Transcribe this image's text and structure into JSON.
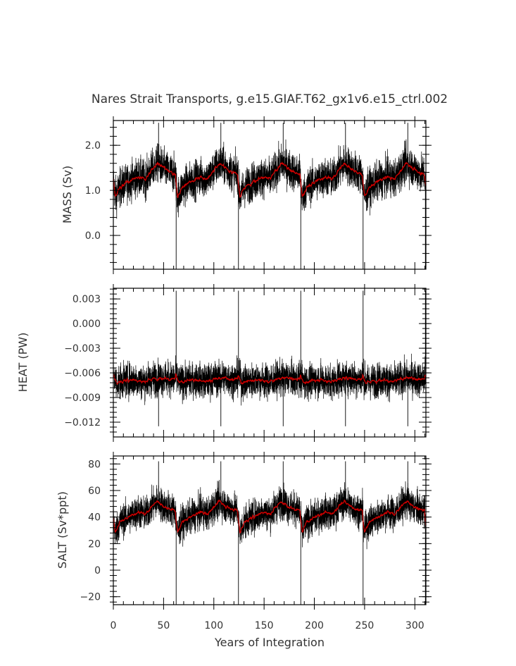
{
  "chart_data": {
    "type": "line",
    "title": "Nares Strait Transports, g.e15.GIAF.T62_gx1v6.e15_ctrl.002",
    "xlabel": "Years of Integration",
    "xlim": [
      0,
      311
    ],
    "xticks": [
      0,
      50,
      100,
      150,
      200,
      250,
      300
    ],
    "xtick_labels": [
      "0",
      "50",
      "100",
      "150",
      "200",
      "250",
      "300"
    ],
    "cycle_length_years": 62,
    "colors": {
      "raw": "#000000",
      "smoothed": "#cc0000"
    },
    "panels": [
      {
        "id": "mass",
        "ylabel": "MASS (Sv)",
        "ylim": [
          -0.75,
          2.55
        ],
        "yticks": [
          0.0,
          1.0,
          2.0
        ],
        "ytick_labels": [
          "0.0",
          "1.0",
          "2.0"
        ],
        "smoothed_profile": [
          [
            0,
            1.25
          ],
          [
            2,
            0.85
          ],
          [
            6,
            1.05
          ],
          [
            15,
            1.2
          ],
          [
            25,
            1.3
          ],
          [
            32,
            1.25
          ],
          [
            38,
            1.45
          ],
          [
            44,
            1.6
          ],
          [
            50,
            1.5
          ],
          [
            56,
            1.4
          ],
          [
            62,
            1.35
          ]
        ],
        "raw_range_typical": [
          0.5,
          2.0
        ],
        "raw_extremes": [
          [
            45,
            2.5
          ],
          [
            62.5,
            -0.75
          ],
          [
            107,
            2.5
          ],
          [
            124.5,
            -0.75
          ],
          [
            169,
            2.5
          ],
          [
            186.5,
            -0.75
          ],
          [
            231,
            2.5
          ],
          [
            248.5,
            -0.75
          ],
          [
            293,
            2.5
          ],
          [
            310.5,
            -0.75
          ]
        ]
      },
      {
        "id": "heat",
        "ylabel": "HEAT (PW)",
        "ylim": [
          -0.0138,
          0.0043
        ],
        "yticks": [
          -0.012,
          -0.009,
          -0.006,
          -0.003,
          0.0,
          0.003
        ],
        "ytick_labels": [
          "−0.012",
          "−0.009",
          "−0.006",
          "−0.003",
          "0.000",
          "0.003"
        ],
        "smoothed_profile": [
          [
            0,
            -0.0062
          ],
          [
            3,
            -0.0072
          ],
          [
            10,
            -0.007
          ],
          [
            20,
            -0.0068
          ],
          [
            30,
            -0.0071
          ],
          [
            40,
            -0.0067
          ],
          [
            50,
            -0.0066
          ],
          [
            56,
            -0.0068
          ],
          [
            62,
            -0.0067
          ]
        ],
        "raw_range_typical": [
          -0.0105,
          -0.003
        ],
        "raw_extremes": [
          [
            45,
            -0.0125
          ],
          [
            62.5,
            0.004
          ],
          [
            107,
            -0.0125
          ],
          [
            124.5,
            0.004
          ],
          [
            169,
            -0.0125
          ],
          [
            186.5,
            0.004
          ],
          [
            231,
            -0.0125
          ],
          [
            248.5,
            0.004
          ],
          [
            293,
            -0.0125
          ],
          [
            310.5,
            0.004
          ]
        ]
      },
      {
        "id": "salt",
        "ylabel": "SALT (Sv*ppt)",
        "ylim": [
          -26,
          86
        ],
        "yticks": [
          -20,
          0,
          20,
          40,
          60,
          80
        ],
        "ytick_labels": [
          "−20",
          "0",
          "20",
          "40",
          "60",
          "80"
        ],
        "smoothed_profile": [
          [
            0,
            40
          ],
          [
            2,
            28
          ],
          [
            6,
            36
          ],
          [
            15,
            40
          ],
          [
            25,
            44
          ],
          [
            32,
            42
          ],
          [
            38,
            48
          ],
          [
            44,
            52
          ],
          [
            50,
            48
          ],
          [
            56,
            46
          ],
          [
            62,
            45
          ]
        ],
        "raw_range_typical": [
          20,
          65
        ],
        "raw_extremes": [
          [
            45,
            82
          ],
          [
            62.5,
            -26
          ],
          [
            107,
            82
          ],
          [
            124.5,
            -26
          ],
          [
            169,
            82
          ],
          [
            186.5,
            -26
          ],
          [
            231,
            82
          ],
          [
            248.5,
            -26
          ],
          [
            293,
            82
          ],
          [
            310.5,
            -26
          ]
        ]
      }
    ]
  }
}
